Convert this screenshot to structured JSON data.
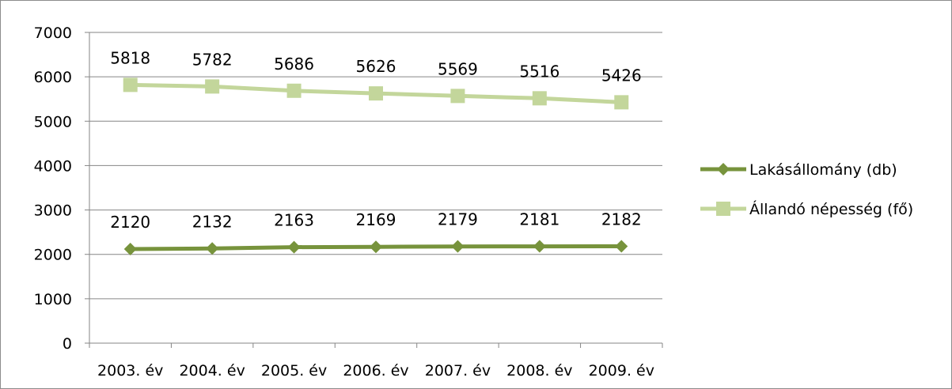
{
  "chart_data": {
    "type": "line",
    "title": "",
    "xlabel": "",
    "ylabel": "",
    "categories": [
      "2003. év",
      "2004. év",
      "2005. év",
      "2006. év",
      "2007. év",
      "2008. év",
      "2009. év"
    ],
    "ylim": [
      0,
      7000
    ],
    "yticks": [
      0,
      1000,
      2000,
      3000,
      4000,
      5000,
      6000,
      7000
    ],
    "grid": true,
    "legend_position": "right",
    "series": [
      {
        "name": "Lakásállomány (db)",
        "values": [
          2120,
          2132,
          2163,
          2169,
          2179,
          2181,
          2182
        ],
        "color": "#77933c",
        "marker": "diamond"
      },
      {
        "name": "Állandó népesség (fő)",
        "values": [
          5818,
          5782,
          5686,
          5626,
          5569,
          5516,
          5426
        ],
        "color": "#c3d69b",
        "marker": "square"
      }
    ]
  }
}
